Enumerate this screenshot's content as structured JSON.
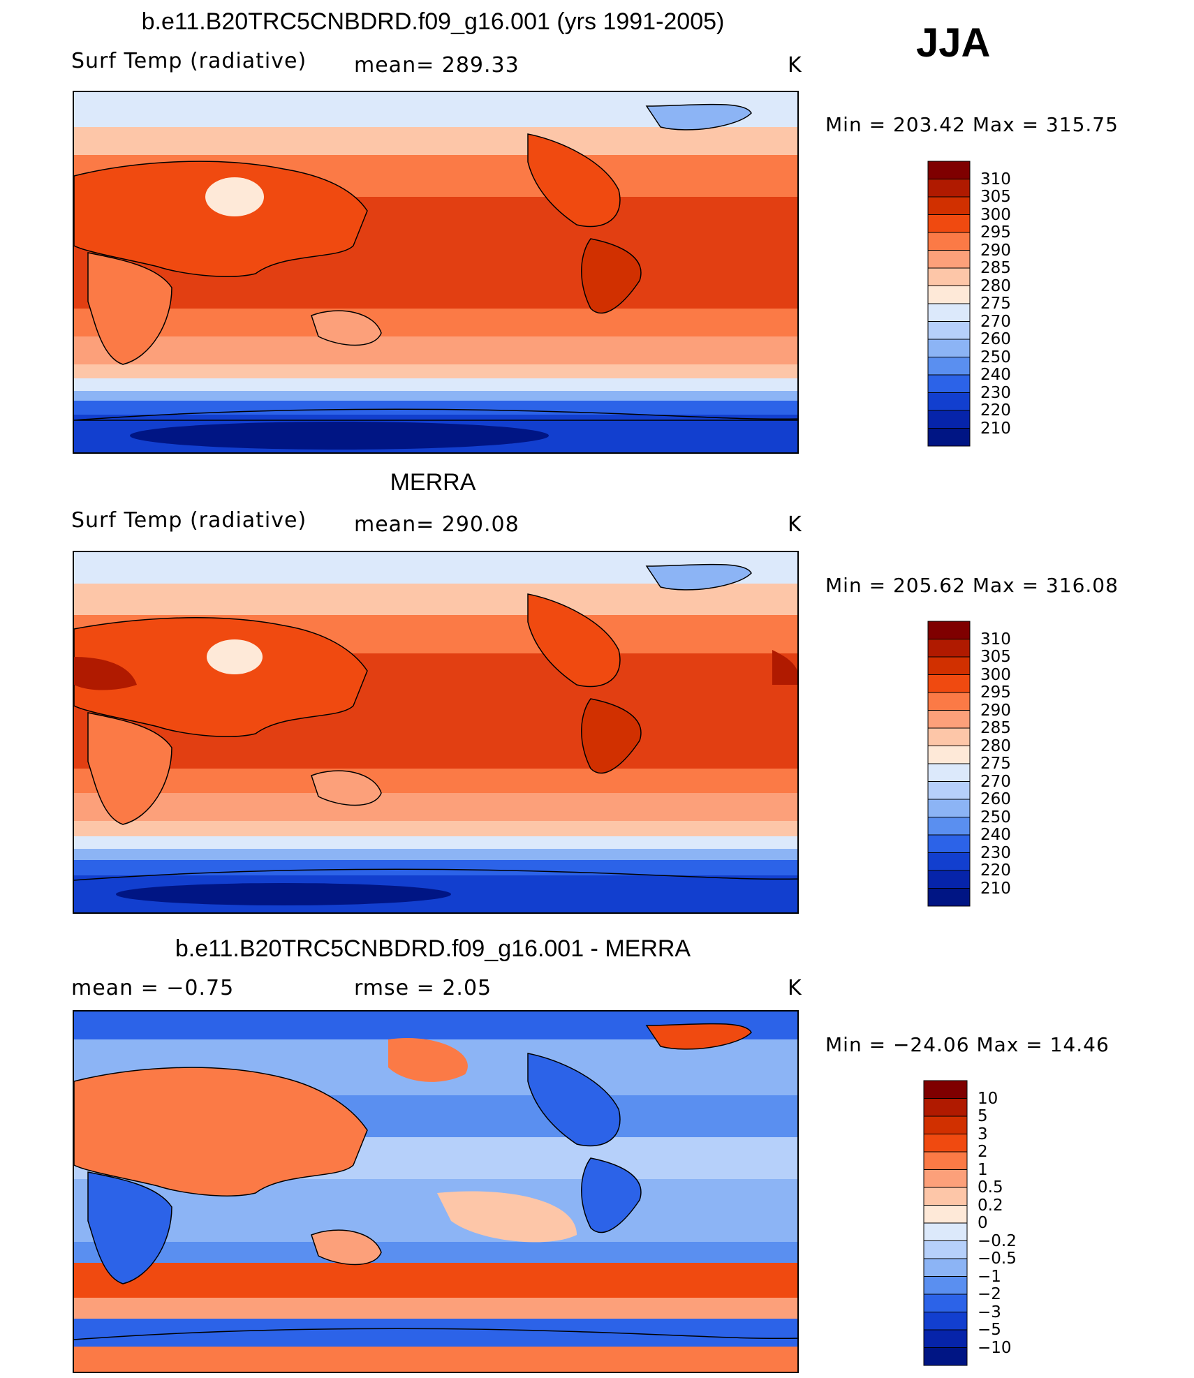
{
  "season": "JJA",
  "panels": [
    {
      "title": "b.e11.B20TRC5CNBDRD.f09_g16.001 (yrs 1991-2005)",
      "variable": "Surf Temp (radiative)",
      "stat_left": "mean=  289.33",
      "stat_mid": "",
      "units": "K",
      "min_max": "Min  =  203.42  Max  =  315.75",
      "colorbar": {
        "labels": [
          "310",
          "305",
          "300",
          "295",
          "290",
          "285",
          "280",
          "275",
          "270",
          "260",
          "250",
          "240",
          "230",
          "220",
          "210"
        ],
        "colors": [
          "#7f0000",
          "#b01a00",
          "#d13000",
          "#f04a10",
          "#fb7a46",
          "#fca07a",
          "#fdc6a8",
          "#fee9d8",
          "#dce9fb",
          "#b6d0fa",
          "#8cb4f5",
          "#5a8ff0",
          "#2c63e8",
          "#123fcf",
          "#0624aa",
          "#001584"
        ]
      }
    },
    {
      "title": "MERRA",
      "variable": "Surf Temp (radiative)",
      "stat_left": "mean=  290.08",
      "stat_mid": "",
      "units": "K",
      "min_max": "Min  =  205.62  Max  =  316.08",
      "colorbar": {
        "labels": [
          "310",
          "305",
          "300",
          "295",
          "290",
          "285",
          "280",
          "275",
          "270",
          "260",
          "250",
          "240",
          "230",
          "220",
          "210"
        ],
        "colors": [
          "#7f0000",
          "#b01a00",
          "#d13000",
          "#f04a10",
          "#fb7a46",
          "#fca07a",
          "#fdc6a8",
          "#fee9d8",
          "#dce9fb",
          "#b6d0fa",
          "#8cb4f5",
          "#5a8ff0",
          "#2c63e8",
          "#123fcf",
          "#0624aa",
          "#001584"
        ]
      }
    },
    {
      "title": "b.e11.B20TRC5CNBDRD.f09_g16.001 - MERRA",
      "variable": "mean  =     −0.75",
      "stat_left": "rmse  =     2.05",
      "stat_mid": "",
      "units": "K",
      "min_max": "Min  =  −24.06  Max  =    14.46",
      "colorbar": {
        "labels": [
          "10",
          "5",
          "3",
          "2",
          "1",
          "0.5",
          "0.2",
          "0",
          "−0.2",
          "−0.5",
          "−1",
          "−2",
          "−3",
          "−5",
          "−10"
        ],
        "colors": [
          "#7f0000",
          "#b01a00",
          "#d13000",
          "#f04a10",
          "#fb7a46",
          "#fca07a",
          "#fdc6a8",
          "#fee9d8",
          "#dce9fb",
          "#b6d0fa",
          "#8cb4f5",
          "#5a8ff0",
          "#2c63e8",
          "#123fcf",
          "#0624aa",
          "#001584"
        ]
      }
    }
  ],
  "palette": {
    "ocean_warm": "#e23f12",
    "ocean_mid": "#fb7a46",
    "polar_cold": "#0a2bb5",
    "diff_neutral": "#8cb4f5"
  }
}
